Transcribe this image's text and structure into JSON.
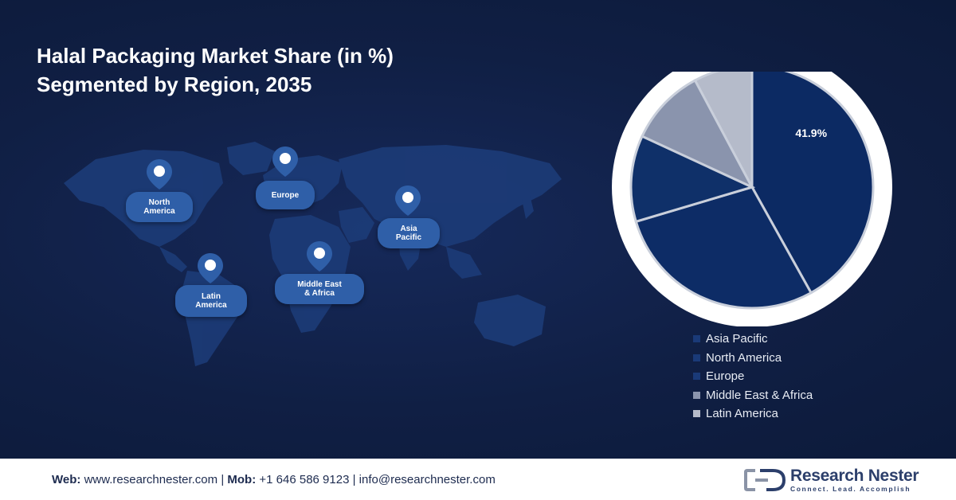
{
  "chart_data": {
    "type": "pie",
    "title_line1": "Halal Packaging Market Share (in %)",
    "title_line2": "Segmented by Region, 2035",
    "categories": [
      "Asia Pacific",
      "North America",
      "Europe",
      "Middle East & Africa",
      "Latin America"
    ],
    "values": [
      41.9,
      28.5,
      11.5,
      10.3,
      7.8
    ],
    "data_labels": [
      "41.9%",
      "",
      "",
      "",
      ""
    ],
    "colors": [
      "#0c2a63",
      "#0d2c66",
      "#0f3069",
      "#8a94ad",
      "#b5bbca"
    ],
    "legend_position": "bottom-right",
    "start_angle_deg": 0
  },
  "map_labels": {
    "north_america": [
      "North",
      "America"
    ],
    "europe": [
      "Europe"
    ],
    "asia_pacific": [
      "Asia",
      "Pacific"
    ],
    "latin_america": [
      "Latin",
      "America"
    ],
    "middle_east_africa": [
      "Middle East",
      "& Africa"
    ]
  },
  "footer": {
    "web_label": "Web:",
    "web_value": "www.researchnester.com",
    "mob_label": "Mob:",
    "mob_value": "+1 646 586 9123",
    "email_value": "info@researchnester.com",
    "separator": "|"
  },
  "logo": {
    "name": "Research Nester",
    "tagline": "Connect. Lead. Accomplish"
  },
  "colors": {
    "background": "#101f44",
    "pin": "#2f5fa8",
    "map_land": "#1d3d7a"
  }
}
